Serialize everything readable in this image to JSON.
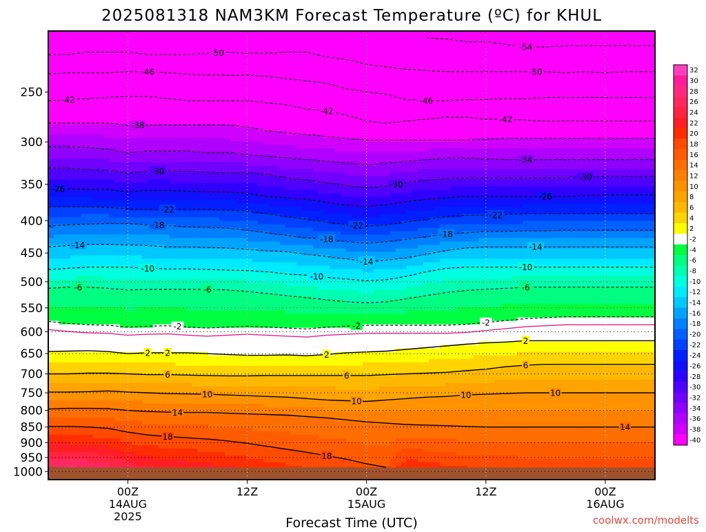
{
  "chart_data": {
    "type": "heatmap",
    "title": "2025081318 NAM3KM Forecast Temperature (ºC) for KHUL",
    "xlabel": "Forecast Time (UTC)",
    "ylabel": "",
    "credit": "coolwx.com/modelts",
    "x_hours_from_first_tick": [
      -8,
      53
    ],
    "x_ticks": [
      {
        "h": 0,
        "lines": [
          "00Z",
          "14AUG",
          "2025"
        ]
      },
      {
        "h": 12,
        "lines": [
          "12Z"
        ]
      },
      {
        "h": 24,
        "lines": [
          "00Z",
          "15AUG"
        ]
      },
      {
        "h": 36,
        "lines": [
          "12Z"
        ]
      },
      {
        "h": 48,
        "lines": [
          "00Z",
          "16AUG"
        ]
      }
    ],
    "y_pressure_range_hpa": [
      200,
      1030
    ],
    "y_ticks": [
      250,
      300,
      350,
      400,
      450,
      500,
      550,
      600,
      650,
      700,
      750,
      800,
      850,
      900,
      950,
      1000
    ],
    "ground_level_hpa": [
      982,
      985,
      985,
      986,
      985,
      986,
      984,
      984,
      986,
      985,
      985,
      985,
      985,
      985,
      985
    ],
    "color_scale": {
      "levels": [
        32,
        30,
        28,
        26,
        24,
        22,
        20,
        18,
        16,
        14,
        12,
        10,
        8,
        6,
        4,
        2,
        -2,
        -4,
        -6,
        -8,
        -10,
        -12,
        -14,
        -16,
        -18,
        -20,
        -22,
        -24,
        -26,
        -28,
        -30,
        -32,
        -34,
        -36,
        -38,
        -40
      ],
      "colors": [
        "#ff3fbf",
        "#ff1e9a",
        "#ff2a80",
        "#ff2860",
        "#ff2442",
        "#ff1e22",
        "#ff2d00",
        "#ff4a00",
        "#ff5c00",
        "#ff6e00",
        "#ff8000",
        "#ff9200",
        "#ffa400",
        "#ffb800",
        "#ffd400",
        "#ffff00",
        "#ffffff",
        "#00ff40",
        "#00ff80",
        "#00ffb0",
        "#00ffdf",
        "#00eaff",
        "#00c8ff",
        "#00a4ff",
        "#0080ff",
        "#0060ff",
        "#0040ff",
        "#0020ff",
        "#1010ff",
        "#3000ff",
        "#5000ff",
        "#7000ff",
        "#9000ff",
        "#b000ff",
        "#d000ff",
        "#ff00ff"
      ]
    },
    "times_h": [
      -8,
      -6,
      -4,
      -2,
      0,
      2,
      4,
      6,
      8,
      10,
      12,
      14,
      16,
      18,
      20,
      22,
      24,
      26,
      28,
      30,
      32,
      34,
      36,
      38,
      40,
      42,
      44,
      46,
      48,
      50,
      52,
      53
    ],
    "isotherms": [
      {
        "t": -54,
        "p": [
          null,
          null,
          null,
          null,
          null,
          null,
          null,
          null,
          null,
          null,
          null,
          null,
          null,
          null,
          null,
          null,
          null,
          null,
          null,
          205,
          206,
          208,
          208,
          210,
          212,
          212,
          211,
          211,
          211,
          211,
          211,
          211
        ]
      },
      {
        "t": -50,
        "p": [
          218,
          218,
          216,
          216,
          216,
          218,
          218,
          218,
          217,
          216,
          217,
          217,
          216,
          216,
          220,
          222,
          226,
          228,
          230,
          231,
          232,
          232,
          232,
          232,
          232,
          232,
          233,
          232,
          233,
          232,
          232,
          232
        ]
      },
      {
        "t": -46,
        "p": [
          234,
          233,
          233,
          233,
          232,
          232,
          233,
          234,
          235,
          235,
          235,
          236,
          238,
          240,
          242,
          247,
          250,
          252,
          257,
          258,
          258,
          257,
          257,
          256,
          256,
          255,
          255,
          255,
          255,
          255,
          255,
          255
        ]
      },
      {
        "t": -42,
        "p": [
          258,
          257,
          256,
          255,
          254,
          254,
          256,
          258,
          258,
          258,
          258,
          260,
          262,
          266,
          268,
          272,
          278,
          280,
          278,
          276,
          274,
          274,
          276,
          276,
          277,
          278,
          278,
          278,
          278,
          278,
          278,
          278
        ]
      },
      {
        "t": -38,
        "p": [
          280,
          280,
          280,
          280,
          282,
          282,
          282,
          282,
          282,
          282,
          284,
          288,
          290,
          292,
          294,
          296,
          298,
          298,
          298,
          298,
          298,
          298,
          297,
          296,
          296,
          296,
          296,
          296,
          296,
          296,
          296,
          296
        ]
      },
      {
        "t": -34,
        "p": [
          305,
          305,
          306,
          308,
          312,
          310,
          310,
          310,
          312,
          312,
          314,
          316,
          318,
          320,
          322,
          324,
          326,
          324,
          322,
          320,
          318,
          318,
          319,
          320,
          320,
          320,
          320,
          320,
          320,
          320,
          320,
          320
        ]
      },
      {
        "t": -30,
        "p": [
          330,
          330,
          332,
          333,
          336,
          334,
          334,
          334,
          335,
          336,
          336,
          338,
          342,
          345,
          348,
          352,
          355,
          352,
          348,
          345,
          343,
          342,
          342,
          342,
          342,
          342,
          342,
          341,
          340,
          340,
          340,
          340
        ]
      },
      {
        "t": -26,
        "p": [
          356,
          356,
          357,
          357,
          360,
          358,
          358,
          359,
          360,
          360,
          362,
          366,
          368,
          370,
          374,
          378,
          380,
          377,
          373,
          370,
          368,
          366,
          366,
          366,
          366,
          366,
          366,
          365,
          364,
          364,
          364,
          364
        ]
      },
      {
        "t": -22,
        "p": [
          380,
          380,
          380,
          381,
          383,
          384,
          384,
          384,
          384,
          385,
          386,
          390,
          394,
          398,
          402,
          406,
          408,
          406,
          402,
          398,
          394,
          392,
          392,
          391,
          390,
          390,
          390,
          390,
          390,
          390,
          390,
          390
        ]
      },
      {
        "t": -18,
        "p": [
          408,
          406,
          405,
          404,
          404,
          406,
          407,
          409,
          410,
          411,
          414,
          418,
          422,
          426,
          428,
          432,
          434,
          432,
          428,
          424,
          420,
          418,
          416,
          416,
          415,
          415,
          414,
          414,
          414,
          414,
          414,
          414
        ]
      },
      {
        "t": -14,
        "p": [
          440,
          438,
          436,
          436,
          437,
          438,
          440,
          440,
          441,
          442,
          444,
          446,
          448,
          452,
          456,
          460,
          464,
          462,
          458,
          452,
          446,
          442,
          440,
          440,
          440,
          440,
          440,
          440,
          440,
          440,
          440,
          440
        ]
      },
      {
        "t": -10,
        "p": [
          478,
          476,
          474,
          474,
          474,
          476,
          477,
          477,
          478,
          479,
          480,
          482,
          486,
          488,
          492,
          495,
          498,
          496,
          490,
          482,
          476,
          474,
          474,
          474,
          474,
          474,
          474,
          474,
          474,
          474,
          474,
          474
        ]
      },
      {
        "t": -6,
        "p": [
          512,
          510,
          510,
          512,
          515,
          514,
          514,
          514,
          514,
          515,
          518,
          522,
          526,
          530,
          534,
          538,
          540,
          538,
          532,
          526,
          520,
          516,
          514,
          512,
          510,
          510,
          510,
          510,
          510,
          510,
          510,
          510
        ]
      },
      {
        "t": -2,
        "p": [
          578,
          582,
          585,
          586,
          590,
          588,
          587,
          590,
          592,
          590,
          588,
          590,
          592,
          594,
          590,
          588,
          586,
          586,
          586,
          586,
          586,
          584,
          580,
          576,
          572,
          570,
          568,
          568,
          568,
          568,
          568,
          568
        ]
      },
      {
        "t": 2,
        "p": [
          645,
          644,
          643,
          645,
          650,
          648,
          648,
          648,
          650,
          652,
          654,
          654,
          653,
          655,
          652,
          648,
          646,
          644,
          640,
          636,
          632,
          628,
          625,
          623,
          620,
          620,
          620,
          620,
          620,
          620,
          620,
          620
        ]
      },
      {
        "t": 6,
        "p": [
          700,
          700,
          698,
          698,
          700,
          702,
          702,
          703,
          704,
          705,
          705,
          704,
          704,
          704,
          704,
          704,
          704,
          702,
          700,
          698,
          696,
          692,
          688,
          682,
          678,
          676,
          676,
          676,
          676,
          676,
          676,
          676
        ]
      },
      {
        "t": 10,
        "p": [
          748,
          748,
          747,
          745,
          748,
          750,
          752,
          753,
          754,
          756,
          758,
          760,
          762,
          766,
          770,
          772,
          774,
          770,
          766,
          762,
          760,
          756,
          754,
          752,
          750,
          750,
          750,
          750,
          750,
          750,
          750,
          750
        ]
      },
      {
        "t": 14,
        "p": [
          796,
          794,
          794,
          795,
          800,
          803,
          805,
          806,
          806,
          808,
          810,
          812,
          814,
          818,
          822,
          828,
          834,
          838,
          842,
          844,
          846,
          848,
          850,
          850,
          850,
          850,
          850,
          850,
          850,
          850,
          850,
          850
        ]
      },
      {
        "t": 18,
        "p": [
          848,
          848,
          850,
          854,
          866,
          875,
          880,
          884,
          888,
          894,
          902,
          912,
          922,
          932,
          944,
          956,
          972,
          985,
          null,
          null,
          null,
          null,
          null,
          null,
          null,
          null,
          null,
          null,
          null,
          null,
          null,
          null
        ]
      }
    ],
    "isotherm_labels": [
      {
        "t": -54,
        "h": 40
      },
      {
        "t": -50,
        "h": 9
      },
      {
        "t": -50,
        "h": 41
      },
      {
        "t": -46,
        "h": 2
      },
      {
        "t": -46,
        "h": 30
      },
      {
        "t": -42,
        "h": -6
      },
      {
        "t": -42,
        "h": 20
      },
      {
        "t": -42,
        "h": 38
      },
      {
        "t": -38,
        "h": 1
      },
      {
        "t": -34,
        "h": 40
      },
      {
        "t": -30,
        "h": 3
      },
      {
        "t": -30,
        "h": 27
      },
      {
        "t": -30,
        "h": 46
      },
      {
        "t": -26,
        "h": -7
      },
      {
        "t": -26,
        "h": 42
      },
      {
        "t": -22,
        "h": 4
      },
      {
        "t": -22,
        "h": 23
      },
      {
        "t": -22,
        "h": 37
      },
      {
        "t": -18,
        "h": 3
      },
      {
        "t": -18,
        "h": 20
      },
      {
        "t": -18,
        "h": 32
      },
      {
        "t": -14,
        "h": -5
      },
      {
        "t": -14,
        "h": 24
      },
      {
        "t": -14,
        "h": 41
      },
      {
        "t": -10,
        "h": 2
      },
      {
        "t": -10,
        "h": 19
      },
      {
        "t": -10,
        "h": 40
      },
      {
        "t": -6,
        "h": -5
      },
      {
        "t": -6,
        "h": 8
      },
      {
        "t": -6,
        "h": 40
      },
      {
        "t": -2,
        "h": 5
      },
      {
        "t": -2,
        "h": 23
      },
      {
        "t": -2,
        "h": 36
      },
      {
        "t": 2,
        "h": 4
      },
      {
        "t": 2,
        "h": 20
      },
      {
        "t": 2,
        "h": 40
      },
      {
        "t": 6,
        "h": 4
      },
      {
        "t": 6,
        "h": 22
      },
      {
        "t": 6,
        "h": 40
      },
      {
        "t": 10,
        "h": 8
      },
      {
        "t": 10,
        "h": 23
      },
      {
        "t": 10,
        "h": 43
      },
      {
        "t": 10,
        "h": 34
      },
      {
        "t": 14,
        "h": 5
      },
      {
        "t": 14,
        "h": 50
      },
      {
        "t": 18,
        "h": 4
      },
      {
        "t": 18,
        "h": 20
      },
      {
        "t": 2,
        "h": 2
      }
    ]
  }
}
